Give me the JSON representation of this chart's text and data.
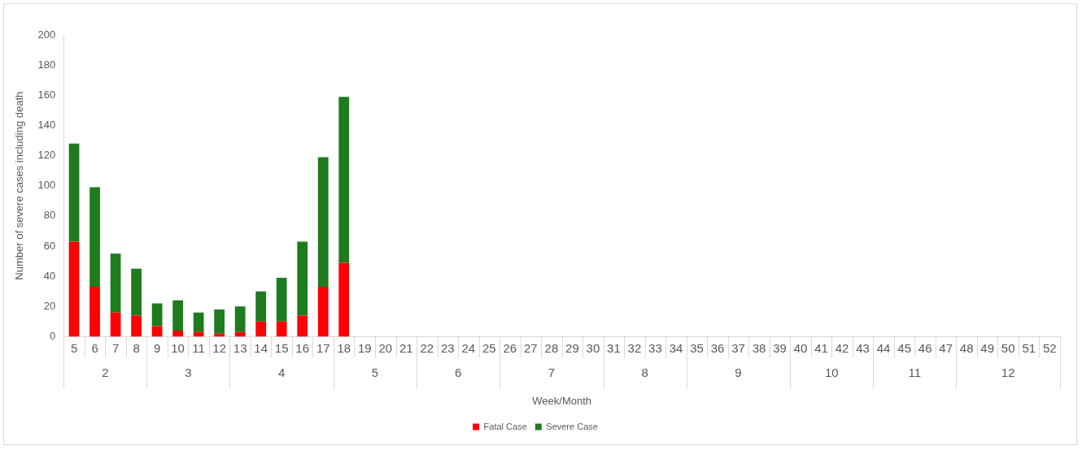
{
  "chart_data": {
    "type": "bar",
    "stacked": true,
    "xlabel": "Week/Month",
    "ylabel": "Number of severe cases including death",
    "categories": [
      "5",
      "6",
      "7",
      "8",
      "9",
      "10",
      "11",
      "12",
      "13",
      "14",
      "15",
      "16",
      "17",
      "18",
      "19",
      "20",
      "21",
      "22",
      "23",
      "24",
      "25",
      "26",
      "27",
      "28",
      "29",
      "30",
      "31",
      "32",
      "33",
      "34",
      "35",
      "36",
      "37",
      "38",
      "39",
      "40",
      "41",
      "42",
      "43",
      "44",
      "45",
      "46",
      "47",
      "48",
      "49",
      "50",
      "51",
      "52"
    ],
    "series": [
      {
        "name": "Fatal Case",
        "color": "#ff0000",
        "values": [
          63,
          33,
          16,
          14,
          7,
          4,
          3,
          2,
          3,
          10,
          10,
          14,
          33,
          49,
          null,
          null,
          null,
          null,
          null,
          null,
          null,
          null,
          null,
          null,
          null,
          null,
          null,
          null,
          null,
          null,
          null,
          null,
          null,
          null,
          null,
          null,
          null,
          null,
          null,
          null,
          null,
          null,
          null,
          null,
          null,
          null,
          null,
          null
        ]
      },
      {
        "name": "Severe Case",
        "color": "#1e7b1e",
        "values": [
          65,
          66,
          39,
          31,
          15,
          20,
          13,
          16,
          17,
          20,
          29,
          49,
          86,
          110,
          null,
          null,
          null,
          null,
          null,
          null,
          null,
          null,
          null,
          null,
          null,
          null,
          null,
          null,
          null,
          null,
          null,
          null,
          null,
          null,
          null,
          null,
          null,
          null,
          null,
          null,
          null,
          null,
          null,
          null,
          null,
          null,
          null,
          null
        ]
      }
    ],
    "ylim": [
      0,
      200
    ],
    "yticks": [
      0,
      20,
      40,
      60,
      80,
      100,
      120,
      140,
      160,
      180,
      200
    ],
    "grid": false,
    "legend": "bottom",
    "annotations": [
      "2",
      "3",
      "4",
      "5",
      "6",
      "7",
      "8",
      "9",
      "10",
      "11",
      "12"
    ]
  }
}
